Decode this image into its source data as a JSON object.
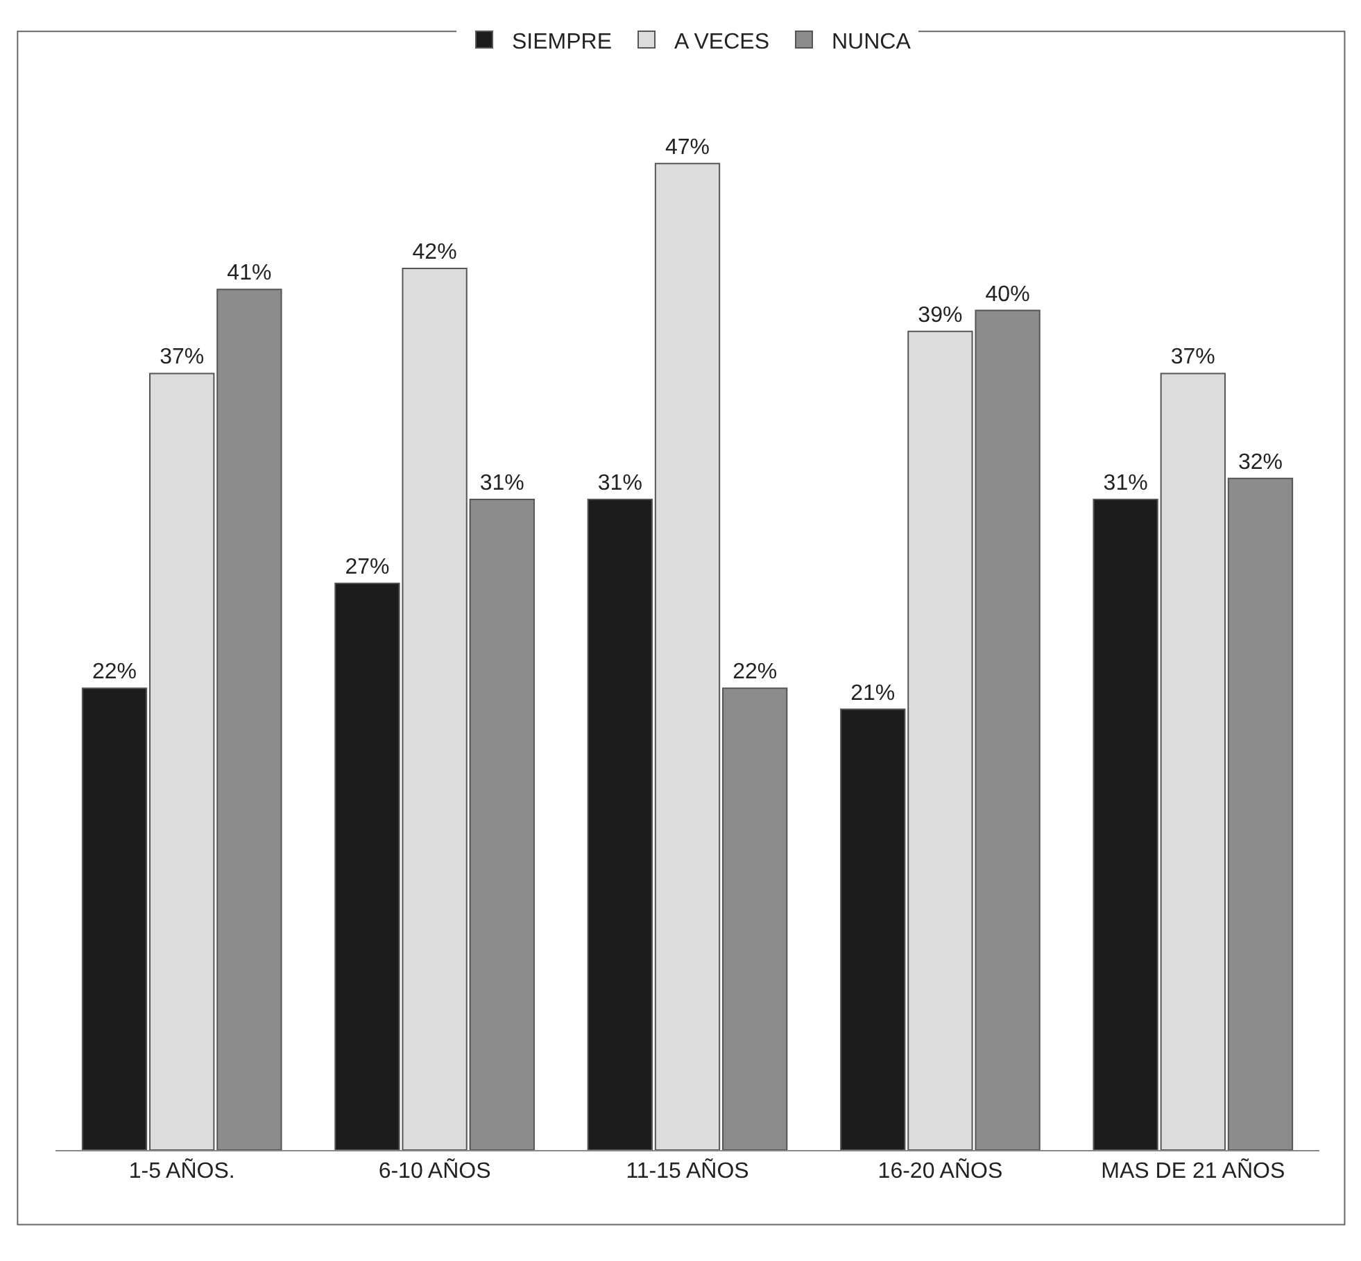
{
  "chart_data": {
    "type": "bar",
    "categories": [
      "1-5 AÑOS.",
      "6-10 AÑOS",
      "11-15 AÑOS",
      "16-20 AÑOS",
      "MAS DE 21 AÑOS"
    ],
    "series": [
      {
        "name": "SIEMPRE",
        "color": "#1c1c1c",
        "values": [
          22,
          27,
          31,
          21,
          31
        ],
        "value_labels": [
          "22%",
          "27%",
          "31%",
          "21%",
          "31%"
        ]
      },
      {
        "name": "A VECES",
        "color": "#dcdcdc",
        "values": [
          37,
          42,
          47,
          39,
          37
        ],
        "value_labels": [
          "37%",
          "42%",
          "47%",
          "39%",
          "37%"
        ]
      },
      {
        "name": "NUNCA",
        "color": "#8c8c8c",
        "values": [
          41,
          31,
          22,
          40,
          32
        ],
        "value_labels": [
          "41%",
          "31%",
          "22%",
          "40%",
          "32%"
        ]
      }
    ],
    "legend": "top",
    "tick_labels": "x"
  }
}
